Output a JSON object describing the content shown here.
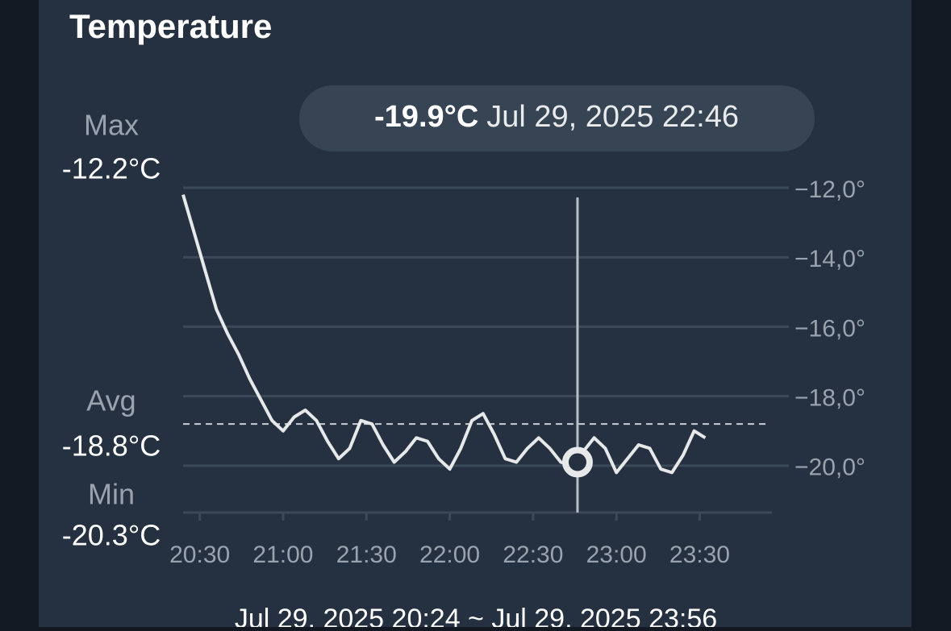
{
  "title": "Temperature",
  "stats": [
    {
      "label": "Max",
      "value": -12.2,
      "value_label": "-12.2°C"
    },
    {
      "label": "Avg",
      "value": -18.8,
      "value_label": "-18.8°C"
    },
    {
      "label": "Min",
      "value": -20.3,
      "value_label": "-20.3°C"
    }
  ],
  "tooltip": {
    "value": -19.9,
    "value_label": "-19.9°C",
    "time": "Jul 29, 2025 22:46"
  },
  "range": "Jul 29, 2025 20:24 ~ Jul 29, 2025 23:56",
  "chart_data": {
    "type": "line",
    "x": [
      "20:24",
      "20:28",
      "20:32",
      "20:36",
      "20:40",
      "20:44",
      "20:48",
      "20:52",
      "20:56",
      "21:00",
      "21:04",
      "21:08",
      "21:12",
      "21:16",
      "21:20",
      "21:24",
      "21:28",
      "21:32",
      "21:36",
      "21:40",
      "21:44",
      "21:48",
      "21:52",
      "21:56",
      "22:00",
      "22:04",
      "22:08",
      "22:12",
      "22:16",
      "22:20",
      "22:24",
      "22:28",
      "22:32",
      "22:36",
      "22:40",
      "22:44",
      "22:48",
      "22:52",
      "22:56",
      "23:00",
      "23:04",
      "23:08",
      "23:12",
      "23:16",
      "23:20",
      "23:24",
      "23:28",
      "23:32"
    ],
    "series": [
      {
        "color": "#e6e8ea",
        "values": [
          -12.2,
          -13.3,
          -14.4,
          -15.5,
          -16.2,
          -16.8,
          -17.5,
          -18.1,
          -18.7,
          -19.0,
          -18.6,
          -18.4,
          -18.7,
          -19.3,
          -19.8,
          -19.5,
          -18.7,
          -18.8,
          -19.4,
          -19.9,
          -19.6,
          -19.2,
          -19.3,
          -19.8,
          -20.1,
          -19.5,
          -18.7,
          -18.5,
          -19.1,
          -19.8,
          -19.9,
          -19.5,
          -19.2,
          -19.5,
          -19.9,
          -20.0,
          -19.6,
          -19.2,
          -19.5,
          -20.2,
          -19.8,
          -19.4,
          -19.5,
          -20.1,
          -20.2,
          -19.7,
          -19.0,
          -19.2
        ]
      }
    ],
    "xlim": [
      "20:24",
      "23:56"
    ],
    "xticks": [
      "20:30",
      "21:00",
      "21:30",
      "22:00",
      "22:30",
      "23:00",
      "23:30"
    ],
    "ylim": [
      -21.35,
      -12
    ],
    "yticks": [
      {
        "value": -12,
        "label": "−12,0°"
      },
      {
        "value": -14,
        "label": "−14,0°"
      },
      {
        "value": -16,
        "label": "−16,0°"
      },
      {
        "value": -18,
        "label": "−18,0°"
      },
      {
        "value": -20,
        "label": "−20,0°"
      }
    ],
    "grid": true
  }
}
